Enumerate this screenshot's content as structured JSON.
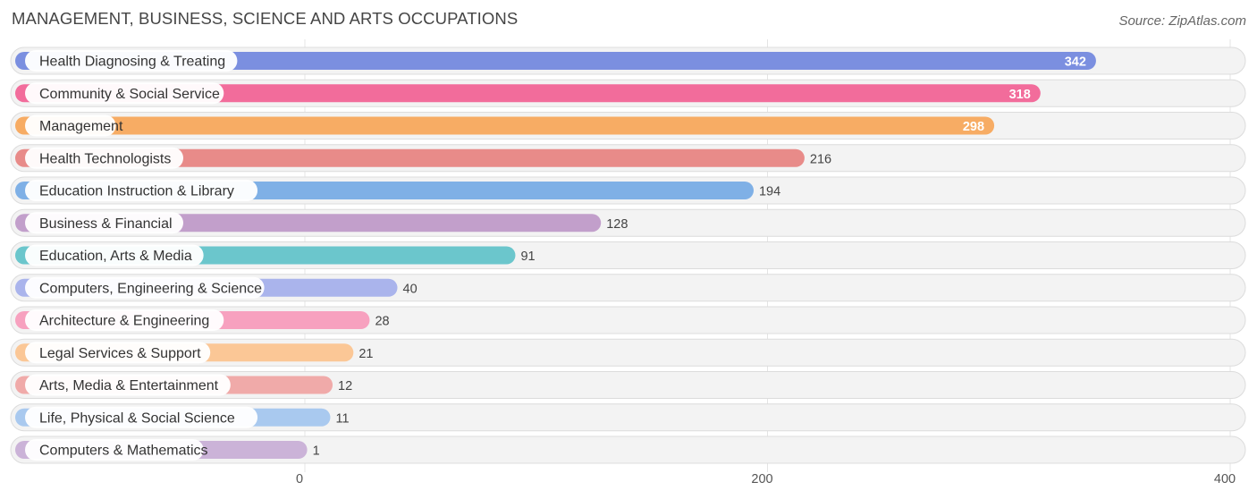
{
  "title": "MANAGEMENT, BUSINESS, SCIENCE AND ARTS OCCUPATIONS",
  "source": "Source: ZipAtlas.com",
  "chart_data": {
    "type": "bar",
    "orientation": "horizontal",
    "categories": [
      "Health Diagnosing & Treating",
      "Community & Social Service",
      "Management",
      "Health Technologists",
      "Education Instruction & Library",
      "Business & Financial",
      "Education, Arts & Media",
      "Computers, Engineering & Science",
      "Architecture & Engineering",
      "Legal Services & Support",
      "Arts, Media & Entertainment",
      "Life, Physical & Social Science",
      "Computers & Mathematics"
    ],
    "values": [
      342,
      318,
      298,
      216,
      194,
      128,
      91,
      40,
      28,
      21,
      12,
      11,
      1
    ],
    "colors": [
      "#7b8fe0",
      "#f26c9b",
      "#f7ac64",
      "#e88b89",
      "#7fb0e6",
      "#c29fcb",
      "#6bc6cc",
      "#aab4ec",
      "#f7a1bf",
      "#fbc796",
      "#f0aaa9",
      "#a9c9ef",
      "#cbb3d8"
    ],
    "xlim": [
      0,
      400
    ],
    "xticks": [
      0,
      200,
      400
    ],
    "grid": true
  }
}
